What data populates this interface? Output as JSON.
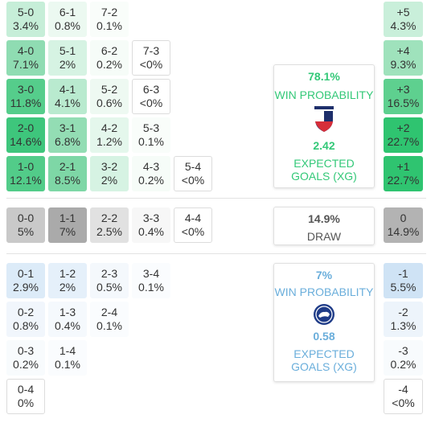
{
  "home": {
    "rows": [
      [
        {
          "score": "5-0",
          "prob": "3.4%",
          "color": "#c6eed8"
        },
        {
          "score": "6-1",
          "prob": "0.8%",
          "color": "#ecf9f1"
        },
        {
          "score": "7-2",
          "prob": "0.1%",
          "color": "#f9fdfa"
        }
      ],
      [
        {
          "score": "4-0",
          "prob": "7.1%",
          "color": "#8fdcb2"
        },
        {
          "score": "5-1",
          "prob": "2%",
          "color": "#d6f3e3"
        },
        {
          "score": "6-2",
          "prob": "0.2%",
          "color": "#f6fcf8"
        },
        {
          "score": "7-3",
          "prob": "<0%",
          "color": "#ffffff"
        }
      ],
      [
        {
          "score": "3-0",
          "prob": "11.8%",
          "color": "#55cd8b"
        },
        {
          "score": "4-1",
          "prob": "4.1%",
          "color": "#b9eacf"
        },
        {
          "score": "5-2",
          "prob": "0.6%",
          "color": "#eef9f2"
        },
        {
          "score": "6-3",
          "prob": "<0%",
          "color": "#ffffff"
        }
      ],
      [
        {
          "score": "2-0",
          "prob": "14.6%",
          "color": "#3ec67c"
        },
        {
          "score": "3-1",
          "prob": "6.8%",
          "color": "#93ddb4"
        },
        {
          "score": "4-2",
          "prob": "1.2%",
          "color": "#e4f7ec"
        },
        {
          "score": "5-3",
          "prob": "0.1%",
          "color": "#f9fdfa"
        }
      ],
      [
        {
          "score": "1-0",
          "prob": "12.1%",
          "color": "#52cc89"
        },
        {
          "score": "2-1",
          "prob": "8.5%",
          "color": "#7ed7a6"
        },
        {
          "score": "3-2",
          "prob": "2%",
          "color": "#d6f3e3"
        },
        {
          "score": "4-3",
          "prob": "0.2%",
          "color": "#f6fcf8"
        },
        {
          "score": "5-4",
          "prob": "<0%",
          "color": "#ffffff"
        }
      ]
    ],
    "margins": [
      {
        "label": "+5",
        "prob": "4.3%",
        "color": "#c9efda"
      },
      {
        "label": "+4",
        "prob": "9.3%",
        "color": "#9fe2bc"
      },
      {
        "label": "+3",
        "prob": "16.5%",
        "color": "#5ed08f"
      },
      {
        "label": "+2",
        "prob": "22.7%",
        "color": "#2fc470"
      },
      {
        "label": "+1",
        "prob": "22.7%",
        "color": "#2fc470"
      }
    ],
    "summary": {
      "win_pct": "78.1%",
      "win_label": "WIN PROBABILITY",
      "xg": "2.42",
      "xg_label": "EXPECTED GOALS (XG)"
    }
  },
  "draw": {
    "cells": [
      {
        "score": "0-0",
        "prob": "5%",
        "color": "#c9c9c9"
      },
      {
        "score": "1-1",
        "prob": "7%",
        "color": "#aaaaaa"
      },
      {
        "score": "2-2",
        "prob": "2.5%",
        "color": "#e1e1e1"
      },
      {
        "score": "3-3",
        "prob": "0.4%",
        "color": "#f7f7f7"
      },
      {
        "score": "4-4",
        "prob": "<0%",
        "color": "#ffffff"
      }
    ],
    "margin": {
      "label": "0",
      "prob": "14.9%",
      "color": "#b3b3b3"
    },
    "summary": {
      "pct": "14.9%",
      "label": "DRAW"
    }
  },
  "away": {
    "rows": [
      [
        {
          "score": "0-1",
          "prob": "2.9%",
          "color": "#dcebf8"
        },
        {
          "score": "1-2",
          "prob": "2%",
          "color": "#e5f0fa"
        },
        {
          "score": "2-3",
          "prob": "0.5%",
          "color": "#f4f8fc"
        },
        {
          "score": "3-4",
          "prob": "0.1%",
          "color": "#fafcfe"
        }
      ],
      [
        {
          "score": "0-2",
          "prob": "0.8%",
          "color": "#f1f6fc"
        },
        {
          "score": "1-3",
          "prob": "0.4%",
          "color": "#f5f9fd"
        },
        {
          "score": "2-4",
          "prob": "0.1%",
          "color": "#fafcfe"
        }
      ],
      [
        {
          "score": "0-3",
          "prob": "0.2%",
          "color": "#f8fbfd"
        },
        {
          "score": "1-4",
          "prob": "0.1%",
          "color": "#fafcfe"
        }
      ],
      [
        {
          "score": "0-4",
          "prob": "0%",
          "color": "#ffffff"
        }
      ]
    ],
    "margins": [
      {
        "label": "-1",
        "prob": "5.5%",
        "color": "#cfe3f5"
      },
      {
        "label": "-2",
        "prob": "1.3%",
        "color": "#edf4fb"
      },
      {
        "label": "-3",
        "prob": "0.2%",
        "color": "#f8fbfd"
      },
      {
        "label": "-4",
        "prob": "<0%",
        "color": "#ffffff"
      }
    ],
    "summary": {
      "win_pct": "7%",
      "win_label": "WIN PROBABILITY",
      "xg": "0.58",
      "xg_label": "EXPECTED GOALS (XG)"
    }
  }
}
